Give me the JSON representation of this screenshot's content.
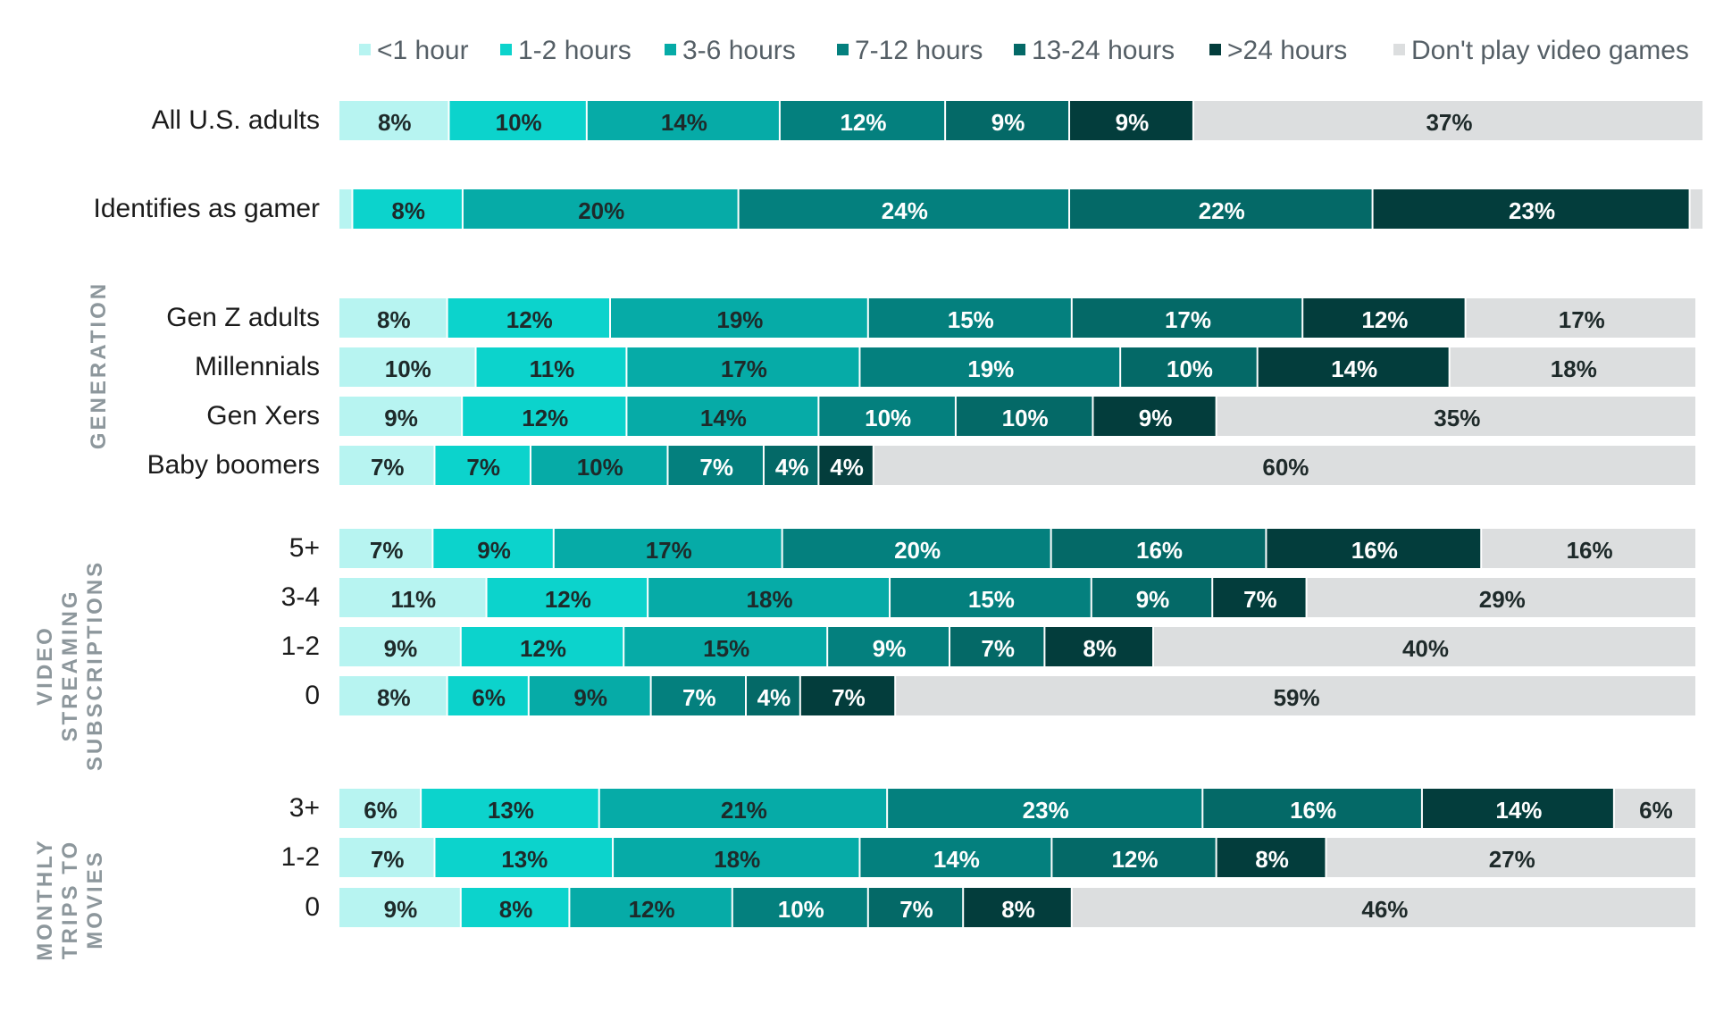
{
  "chart_data": {
    "type": "bar",
    "orientation": "horizontal",
    "stacked": true,
    "normalized": true,
    "legend_position": "top",
    "categories": [
      "<1 hour",
      "1-2 hours",
      "3-6 hours",
      "7-12 hours",
      "13-24 hours",
      ">24 hours",
      "Don't play video games"
    ],
    "colors": [
      "#b7f4f1",
      "#0cd3cc",
      "#06aba7",
      "#04807e",
      "#046967",
      "#033d3c",
      "#dcdedf"
    ],
    "groups": [
      {
        "label": "",
        "rows": [
          {
            "label": "All U.S. adults",
            "values": [
              8,
              10,
              14,
              12,
              9,
              9,
              37
            ],
            "value_labels": [
              "8%",
              "10%",
              "14%",
              "12%",
              "9%",
              "9%",
              "37%"
            ]
          }
        ]
      },
      {
        "label": "",
        "rows": [
          {
            "label": "Identifies as gamer",
            "values": [
              1,
              8,
              20,
              24,
              22,
              23,
              1
            ],
            "value_labels": [
              "",
              "8%",
              "20%",
              "24%",
              "22%",
              "23%",
              ""
            ]
          }
        ]
      },
      {
        "label": "GENERATION",
        "rows": [
          {
            "label": "Gen Z adults",
            "values": [
              8,
              12,
              19,
              15,
              17,
              12,
              17
            ],
            "value_labels": [
              "8%",
              "12%",
              "19%",
              "15%",
              "17%",
              "12%",
              "17%"
            ]
          },
          {
            "label": "Millennials",
            "values": [
              10,
              11,
              17,
              19,
              10,
              14,
              18
            ],
            "value_labels": [
              "10%",
              "11%",
              "17%",
              "19%",
              "10%",
              "14%",
              "18%"
            ]
          },
          {
            "label": "Gen Xers",
            "values": [
              9,
              12,
              14,
              10,
              10,
              9,
              35
            ],
            "value_labels": [
              "9%",
              "12%",
              "14%",
              "10%",
              "10%",
              "9%",
              "35%"
            ]
          },
          {
            "label": "Baby boomers",
            "values": [
              7,
              7,
              10,
              7,
              4,
              4,
              60
            ],
            "value_labels": [
              "7%",
              "7%",
              "10%",
              "7%",
              "4%",
              "4%",
              "60%"
            ]
          }
        ]
      },
      {
        "label": "VIDEO STREAMING SUBSCRIPTIONS",
        "label_lines": [
          "VIDEO",
          "STREAMING",
          "SUBSCRIPTIONS"
        ],
        "rows": [
          {
            "label": "5+",
            "values": [
              7,
              9,
              17,
              20,
              16,
              16,
              16
            ],
            "value_labels": [
              "7%",
              "9%",
              "17%",
              "20%",
              "16%",
              "16%",
              "16%"
            ]
          },
          {
            "label": "3-4",
            "values": [
              11,
              12,
              18,
              15,
              9,
              7,
              29
            ],
            "value_labels": [
              "11%",
              "12%",
              "18%",
              "15%",
              "9%",
              "7%",
              "29%"
            ]
          },
          {
            "label": "1-2",
            "values": [
              9,
              12,
              15,
              9,
              7,
              8,
              40
            ],
            "value_labels": [
              "9%",
              "12%",
              "15%",
              "9%",
              "7%",
              "8%",
              "40%"
            ]
          },
          {
            "label": "0",
            "values": [
              8,
              6,
              9,
              7,
              4,
              7,
              59
            ],
            "value_labels": [
              "8%",
              "6%",
              "9%",
              "7%",
              "4%",
              "7%",
              "59%"
            ]
          }
        ]
      },
      {
        "label": "MONTHLY TRIPS TO MOVIES",
        "label_lines": [
          "MONTHLY",
          "TRIPS TO",
          "MOVIES"
        ],
        "rows": [
          {
            "label": "3+",
            "values": [
              6,
              13,
              21,
              23,
              16,
              14,
              6
            ],
            "value_labels": [
              "6%",
              "13%",
              "21%",
              "23%",
              "16%",
              "14%",
              "6%"
            ]
          },
          {
            "label": "1-2",
            "values": [
              7,
              13,
              18,
              14,
              12,
              8,
              27
            ],
            "value_labels": [
              "7%",
              "13%",
              "18%",
              "14%",
              "12%",
              "8%",
              "27%"
            ]
          },
          {
            "label": "0",
            "values": [
              9,
              8,
              12,
              10,
              7,
              8,
              46
            ],
            "value_labels": [
              "9%",
              "8%",
              "12%",
              "10%",
              "7%",
              "8%",
              "46%"
            ]
          }
        ]
      }
    ]
  }
}
